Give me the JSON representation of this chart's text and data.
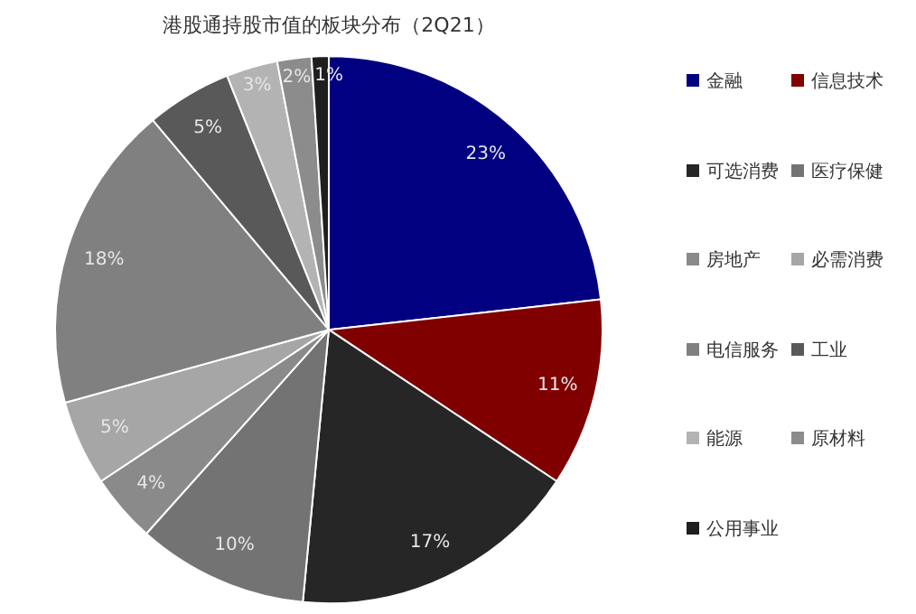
{
  "chart_data": {
    "type": "pie",
    "title": "港股通持股市值的板块分布（2Q21）",
    "categories": [
      "金融",
      "信息技术",
      "可选消费",
      "医疗保健",
      "房地产",
      "必需消费",
      "电信服务",
      "工业",
      "能源",
      "原材料",
      "公用事业"
    ],
    "values": [
      23,
      11,
      17,
      10,
      4,
      5,
      18,
      5,
      3,
      2,
      1
    ],
    "value_labels": [
      "23%",
      "11%",
      "17%",
      "10%",
      "4%",
      "5%",
      "18%",
      "5%",
      "3%",
      "2%",
      "1%"
    ],
    "colors": [
      "#000080",
      "#800000",
      "#262626",
      "#737373",
      "#8a8a8a",
      "#a6a6a6",
      "#808080",
      "#595959",
      "#b3b3b3",
      "#8c8c8c",
      "#1f1f1f"
    ],
    "legend": "right"
  }
}
